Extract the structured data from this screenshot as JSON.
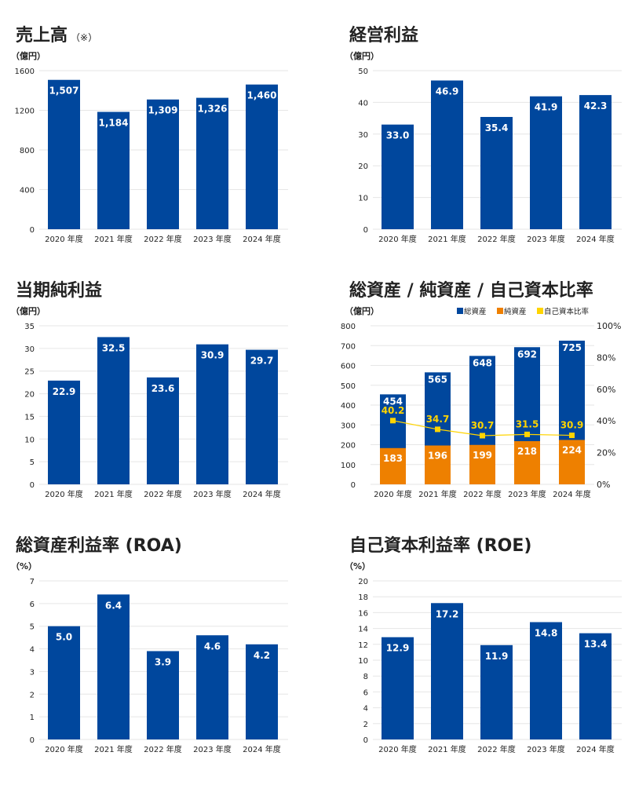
{
  "colors": {
    "bar": "#00479d",
    "net": "#ee8000",
    "ratio": "#ffd400",
    "grid": "#e6e6e6",
    "text": "#222222"
  },
  "chart_data": [
    {
      "type": "bar",
      "title": "売上高",
      "title_note": "（※）",
      "ylabel": "（億円）",
      "categories": [
        "2020 年度",
        "2021 年度",
        "2022 年度",
        "2023 年度",
        "2024 年度"
      ],
      "values": [
        1507,
        1184,
        1309,
        1326,
        1460
      ],
      "value_labels": [
        "1,507",
        "1,184",
        "1,309",
        "1,326",
        "1,460"
      ],
      "ylim": [
        0,
        1600
      ],
      "yticks": [
        "0",
        "400",
        "800",
        "1200",
        "1600"
      ],
      "grid": true
    },
    {
      "type": "bar",
      "title": "経営利益",
      "ylabel": "（億円）",
      "categories": [
        "2020 年度",
        "2021 年度",
        "2022 年度",
        "2023 年度",
        "2024 年度"
      ],
      "values": [
        33.0,
        46.9,
        35.4,
        41.9,
        42.3
      ],
      "value_labels": [
        "33.0",
        "46.9",
        "35.4",
        "41.9",
        "42.3"
      ],
      "ylim": [
        0,
        50
      ],
      "yticks": [
        "0",
        "10",
        "20",
        "30",
        "40",
        "50"
      ],
      "grid": true
    },
    {
      "type": "bar",
      "title": "当期純利益",
      "ylabel": "（億円）",
      "categories": [
        "2020 年度",
        "2021 年度",
        "2022 年度",
        "2023 年度",
        "2024 年度"
      ],
      "values": [
        22.9,
        32.5,
        23.6,
        30.9,
        29.7
      ],
      "value_labels": [
        "22.9",
        "32.5",
        "23.6",
        "30.9",
        "29.7"
      ],
      "ylim": [
        0,
        35
      ],
      "yticks": [
        "0",
        "5",
        "10",
        "15",
        "20",
        "25",
        "30",
        "35"
      ],
      "grid": true
    },
    {
      "type": "bar",
      "stacked": true,
      "title": "総資産 / 純資産 / 自己資本比率",
      "ylabel": "（億円）",
      "categories": [
        "2020 年度",
        "2021 年度",
        "2022 年度",
        "2023 年度",
        "2024 年度"
      ],
      "series": [
        {
          "name": "総資産",
          "values": [
            454,
            565,
            648,
            692,
            725
          ],
          "labels": [
            "454",
            "565",
            "648",
            "692",
            "725"
          ]
        },
        {
          "name": "純資産",
          "values": [
            183,
            196,
            199,
            218,
            224
          ],
          "labels": [
            "183",
            "196",
            "199",
            "218",
            "224"
          ]
        },
        {
          "name": "自己資本比率",
          "axis": "right",
          "type": "line",
          "values": [
            40.2,
            34.7,
            30.7,
            31.5,
            30.9
          ],
          "labels": [
            "40.2",
            "34.7",
            "30.7",
            "31.5",
            "30.9"
          ]
        }
      ],
      "ylim": [
        0,
        800
      ],
      "yticks": [
        "0",
        "100",
        "200",
        "300",
        "400",
        "500",
        "600",
        "700",
        "800"
      ],
      "y2lim": [
        0,
        100
      ],
      "y2ticks": [
        "0%",
        "20%",
        "40%",
        "60%",
        "80%",
        "100%"
      ],
      "legend": "top-right",
      "grid": true
    },
    {
      "type": "bar",
      "title": "総資産利益率 (ROA)",
      "ylabel": "（%）",
      "categories": [
        "2020 年度",
        "2021 年度",
        "2022 年度",
        "2023 年度",
        "2024 年度"
      ],
      "values": [
        5.0,
        6.4,
        3.9,
        4.6,
        4.2
      ],
      "value_labels": [
        "5.0",
        "6.4",
        "3.9",
        "4.6",
        "4.2"
      ],
      "ylim": [
        0,
        7
      ],
      "yticks": [
        "0",
        "1",
        "2",
        "3",
        "4",
        "5",
        "6",
        "7"
      ],
      "grid": true
    },
    {
      "type": "bar",
      "title": "自己資本利益率 (ROE)",
      "ylabel": "（%）",
      "categories": [
        "2020 年度",
        "2021 年度",
        "2022 年度",
        "2023 年度",
        "2024 年度"
      ],
      "values": [
        12.9,
        17.2,
        11.9,
        14.8,
        13.4
      ],
      "value_labels": [
        "12.9",
        "17.2",
        "11.9",
        "14.8",
        "13.4"
      ],
      "ylim": [
        0,
        20
      ],
      "yticks": [
        "0",
        "2",
        "4",
        "6",
        "8",
        "10",
        "12",
        "14",
        "16",
        "18",
        "20"
      ],
      "grid": true
    }
  ]
}
